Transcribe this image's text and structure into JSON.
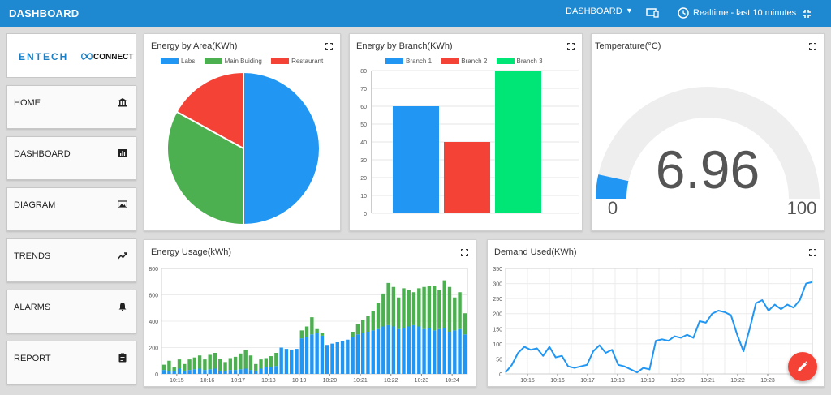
{
  "header": {
    "title": "DASHBOARD",
    "dashboard_select": "DASHBOARD",
    "realtime_label": "Realtime - last 10 minutes"
  },
  "sidebar": {
    "logo_left": "ENTECH",
    "logo_right": "CONNECT",
    "items": [
      {
        "label": "HOME",
        "icon": "bank-icon"
      },
      {
        "label": "DASHBOARD",
        "icon": "bar-chart-icon"
      },
      {
        "label": "DIAGRAM",
        "icon": "image-icon"
      },
      {
        "label": "TRENDS",
        "icon": "trending-up-icon"
      },
      {
        "label": "ALARMS",
        "icon": "bell-icon"
      },
      {
        "label": "REPORT",
        "icon": "clipboard-icon"
      }
    ]
  },
  "panels": {
    "area": {
      "title": "Energy by Area(KWh)"
    },
    "branch": {
      "title": "Energy by Branch(KWh)"
    },
    "temperature": {
      "title": "Temperature(°C)",
      "value": "6.96",
      "min": "0",
      "max": "100",
      "fraction": 0.0696,
      "color": "#2196f3"
    },
    "usage": {
      "title": "Energy Usage(kWh)"
    },
    "demand": {
      "title": "Demand Used(KWh)"
    }
  },
  "chart_data": [
    {
      "type": "pie",
      "title": "Energy by Area(KWh)",
      "labels": [
        "Labs",
        "Main Buiding",
        "Restaurant"
      ],
      "values": [
        50,
        33,
        17
      ],
      "colors": [
        "#2196f3",
        "#4caf50",
        "#f44336"
      ]
    },
    {
      "type": "bar",
      "title": "Energy by Branch(KWh)",
      "categories": [
        "Branch 1",
        "Branch 2",
        "Branch 3"
      ],
      "values": [
        60,
        40,
        80
      ],
      "colors": [
        "#2196f3",
        "#f44336",
        "#00e676"
      ],
      "ylim": [
        0,
        80
      ],
      "yticks": [
        "0",
        "10",
        "20",
        "30",
        "40",
        "50",
        "60",
        "70",
        "80"
      ]
    },
    {
      "type": "bar",
      "title": "Energy Usage(kWh)",
      "stacked": true,
      "ylim": [
        0,
        800
      ],
      "yticks": [
        "0",
        "200",
        "400",
        "600",
        "800"
      ],
      "xticks": [
        "10:15",
        "10:16",
        "10:17",
        "10:18",
        "10:19",
        "10:20",
        "10:21",
        "10:22",
        "10:23",
        "10:24"
      ],
      "series": [
        {
          "color": "#2196f3",
          "values": [
            30,
            20,
            20,
            40,
            25,
            30,
            35,
            40,
            30,
            35,
            40,
            25,
            20,
            30,
            30,
            35,
            40,
            30,
            25,
            40,
            50,
            55,
            60,
            200,
            190,
            185,
            190,
            270,
            280,
            300,
            310,
            290,
            220,
            230,
            240,
            250,
            260,
            280,
            300,
            310,
            320,
            330,
            340,
            360,
            370,
            360,
            340,
            350,
            360,
            370,
            360,
            340,
            350,
            330,
            340,
            350,
            320,
            330,
            340,
            300
          ]
        },
        {
          "color": "#4caf50",
          "values": [
            40,
            80,
            30,
            70,
            50,
            80,
            90,
            100,
            80,
            110,
            120,
            90,
            70,
            90,
            100,
            120,
            140,
            110,
            50,
            70,
            70,
            80,
            100,
            0,
            0,
            0,
            0,
            60,
            80,
            130,
            30,
            20,
            0,
            0,
            0,
            0,
            0,
            40,
            80,
            100,
            120,
            150,
            200,
            250,
            320,
            300,
            240,
            300,
            280,
            250,
            290,
            320,
            320,
            340,
            300,
            360,
            340,
            250,
            280,
            160
          ]
        }
      ]
    },
    {
      "type": "line",
      "title": "Demand Used(KWh)",
      "ylim": [
        0,
        350
      ],
      "yticks": [
        "0",
        "50",
        "100",
        "150",
        "200",
        "250",
        "300",
        "350"
      ],
      "xticks": [
        "10:15",
        "10:16",
        "10:17",
        "10:18",
        "10:19",
        "10:20",
        "10:21",
        "10:22",
        "10:23"
      ],
      "color": "#2196f3",
      "values": [
        5,
        30,
        70,
        90,
        80,
        85,
        60,
        90,
        55,
        60,
        25,
        20,
        25,
        30,
        75,
        95,
        70,
        80,
        30,
        25,
        15,
        5,
        20,
        15,
        110,
        115,
        110,
        125,
        120,
        130,
        120,
        175,
        170,
        200,
        210,
        205,
        195,
        130,
        75,
        150,
        235,
        245,
        210,
        230,
        215,
        230,
        220,
        245,
        300,
        305
      ]
    }
  ]
}
